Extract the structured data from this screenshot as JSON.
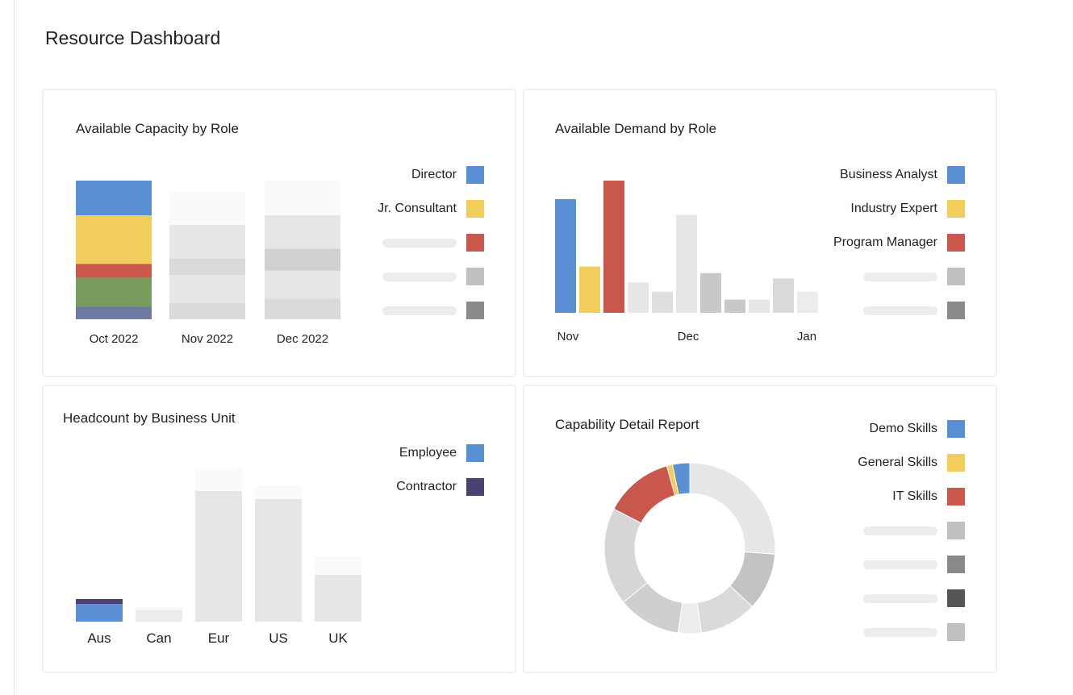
{
  "page": {
    "title": "Resource Dashboard"
  },
  "chart_data": [
    {
      "id": "capacity",
      "type": "bar",
      "stacked": true,
      "title": "Available Capacity by Role",
      "categories": [
        "Oct 2022",
        "Nov 2022",
        "Dec 2022"
      ],
      "ylim": [
        0,
        100
      ],
      "series": [
        {
          "name": "Director",
          "color": "#5b8fd4",
          "values": [
            25,
            0,
            0
          ]
        },
        {
          "name": "Jr. Consultant",
          "color": "#f1cd5b",
          "values": [
            35,
            0,
            0
          ]
        },
        {
          "name": "",
          "color": "#c9574c",
          "values": [
            10,
            0,
            0
          ]
        },
        {
          "name": "",
          "color": "#c0c0c0",
          "values": [
            0,
            0,
            0
          ]
        },
        {
          "name": "",
          "color": "#8a8a8a",
          "values": [
            0,
            0,
            0
          ]
        }
      ],
      "muted": [
        {
          "category": "Nov 2022",
          "segments": [
            {
              "v": 12,
              "c": "#d9d9d9"
            },
            {
              "v": 20,
              "c": "#e6e6e6"
            },
            {
              "v": 12,
              "c": "#d9d9d9"
            },
            {
              "v": 24,
              "c": "#e6e6e6"
            },
            {
              "v": 24,
              "c": "#fafafa"
            }
          ]
        },
        {
          "category": "Dec 2022",
          "segments": [
            {
              "v": 15,
              "c": "#d9d9d9"
            },
            {
              "v": 20,
              "c": "#e6e6e6"
            },
            {
              "v": 16,
              "c": "#d0d0d0"
            },
            {
              "v": 24,
              "c": "#e6e6e6"
            },
            {
              "v": 25,
              "c": "#fafafa"
            }
          ]
        }
      ],
      "extra_oct": [
        {
          "v": 21,
          "c": "#7a9b5e"
        },
        {
          "v": 9,
          "c": "#6f7aa3"
        }
      ]
    },
    {
      "id": "demand",
      "type": "bar",
      "title": "Available Demand by Role",
      "x_ticks": [
        "Nov",
        "Dec",
        "Jan"
      ],
      "ylim": [
        0,
        100
      ],
      "series": [
        {
          "name": "Business Analyst",
          "color": "#5b8fd4"
        },
        {
          "name": "Industry Expert",
          "color": "#f1cd5b"
        },
        {
          "name": "Program Manager",
          "color": "#c9574c"
        },
        {
          "name": "",
          "color": "#c0c0c0"
        },
        {
          "name": "",
          "color": "#8a8a8a"
        }
      ],
      "bars": [
        {
          "v": 86,
          "c": "#5b8fd4"
        },
        {
          "v": 35,
          "c": "#f1cd5b"
        },
        {
          "v": 100,
          "c": "#c9574c"
        },
        {
          "v": 23,
          "c": "#e6e6e6"
        },
        {
          "v": 16,
          "c": "#dedede"
        },
        {
          "v": 74,
          "c": "#e6e6e6"
        },
        {
          "v": 30,
          "c": "#c8c8c8"
        },
        {
          "v": 10,
          "c": "#c8c8c8"
        },
        {
          "v": 10,
          "c": "#e6e6e6"
        },
        {
          "v": 26,
          "c": "#d9d9d9"
        },
        {
          "v": 16,
          "c": "#ececec"
        }
      ]
    },
    {
      "id": "headcount",
      "type": "bar",
      "stacked": true,
      "title": "Headcount by Business Unit",
      "categories": [
        "Aus",
        "Can",
        "Eur",
        "US",
        "UK"
      ],
      "ylim": [
        0,
        190
      ],
      "series": [
        {
          "name": "Employee",
          "color": "#5b8fd4",
          "values": [
            22,
            0,
            0,
            0,
            0
          ]
        },
        {
          "name": "Contractor",
          "color": "#4a4271",
          "values": [
            6,
            0,
            0,
            0,
            0
          ]
        }
      ],
      "muted": [
        {
          "category": "Can",
          "segments": [
            {
              "v": 14,
              "c": "#ececec"
            },
            {
              "v": 3,
              "c": "#f6f6f6"
            }
          ]
        },
        {
          "category": "Eur",
          "segments": [
            {
              "v": 162,
              "c": "#e6e6e6"
            },
            {
              "v": 28,
              "c": "#fafafa"
            }
          ]
        },
        {
          "category": "US",
          "segments": [
            {
              "v": 152,
              "c": "#e6e6e6"
            },
            {
              "v": 17,
              "c": "#fafafa"
            }
          ]
        },
        {
          "category": "UK",
          "segments": [
            {
              "v": 58,
              "c": "#e6e6e6"
            },
            {
              "v": 23,
              "c": "#fafafa"
            }
          ]
        }
      ]
    },
    {
      "id": "capability",
      "type": "pie",
      "donut": true,
      "title": "Capability Detail Report",
      "series": [
        {
          "name": "Demo Skills",
          "color": "#5b8fd4"
        },
        {
          "name": "General Skills",
          "color": "#f1cd5b"
        },
        {
          "name": "IT Skills",
          "color": "#c9574c"
        },
        {
          "name": "",
          "color": "#c0c0c0"
        },
        {
          "name": "",
          "color": "#8a8a8a"
        },
        {
          "name": "",
          "color": "#555555"
        },
        {
          "name": "",
          "color": "#c0c0c0"
        }
      ],
      "slices": [
        {
          "v": 24,
          "c": "#e6e6e6"
        },
        {
          "v": 10,
          "c": "#c3c3c3"
        },
        {
          "v": 10,
          "c": "#dadada"
        },
        {
          "v": 4,
          "c": "#ececec"
        },
        {
          "v": 11,
          "c": "#cfcfcf"
        },
        {
          "v": 17,
          "c": "#d6d6d6"
        },
        {
          "v": 12,
          "c": "#c9574c"
        },
        {
          "v": 1,
          "c": "#f1cd5b"
        },
        {
          "v": 3,
          "c": "#5b8fd4"
        }
      ]
    }
  ]
}
